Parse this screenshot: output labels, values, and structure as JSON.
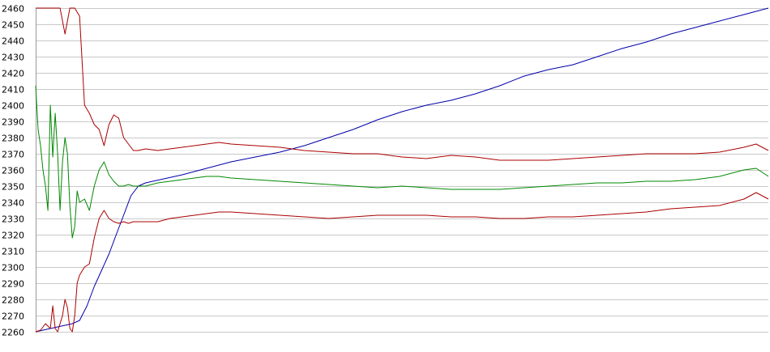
{
  "chart_data": {
    "type": "line",
    "title": "",
    "xlabel": "",
    "ylabel": "",
    "ylim": [
      2260,
      2460
    ],
    "yticks": [
      2260,
      2270,
      2280,
      2290,
      2300,
      2310,
      2320,
      2330,
      2340,
      2350,
      2360,
      2370,
      2380,
      2390,
      2400,
      2410,
      2420,
      2430,
      2440,
      2450,
      2460
    ],
    "xlim": [
      0,
      300
    ],
    "grid": true,
    "legend": "none",
    "series": [
      {
        "color": "#0000aa",
        "x": [
          0,
          3,
          6,
          9,
          12,
          15,
          18,
          21,
          24,
          27,
          30,
          33,
          36,
          39,
          42,
          45,
          48,
          51,
          54,
          57,
          60,
          65,
          70,
          75,
          80,
          90,
          100,
          110,
          120,
          130,
          140,
          150,
          160,
          170,
          180,
          190,
          200,
          210,
          220,
          230,
          240,
          250,
          260,
          270,
          280,
          290,
          300
        ],
        "values": [
          2260,
          2261,
          2262,
          2263,
          2264,
          2265,
          2267,
          2276,
          2288,
          2298,
          2308,
          2320,
          2332,
          2344,
          2350,
          2352,
          2353,
          2354,
          2355,
          2356,
          2357,
          2359,
          2361,
          2363,
          2365,
          2368,
          2371,
          2375,
          2380,
          2385,
          2391,
          2396,
          2400,
          2403,
          2407,
          2412,
          2418,
          2422,
          2425,
          2430,
          2435,
          2439,
          2444,
          2448,
          2452,
          2456,
          2460
        ]
      },
      {
        "color": "#aa0000",
        "x": [
          0,
          2,
          4,
          6,
          8,
          10,
          12,
          14,
          16,
          18,
          20,
          22,
          24,
          26,
          28,
          30,
          32,
          34,
          36,
          38,
          40,
          42,
          45,
          50,
          55,
          60,
          65,
          70,
          75,
          80,
          90,
          100,
          110,
          120,
          130,
          140,
          150,
          160,
          170,
          180,
          190,
          200,
          210,
          220,
          230,
          240,
          250,
          260,
          270,
          280,
          290,
          295,
          300
        ],
        "values": [
          2460,
          2460,
          2460,
          2460,
          2460,
          2460,
          2444,
          2460,
          2460,
          2455,
          2400,
          2395,
          2388,
          2385,
          2375,
          2388,
          2394,
          2392,
          2380,
          2376,
          2372,
          2372,
          2373,
          2372,
          2373,
          2374,
          2375,
          2376,
          2377,
          2376,
          2375,
          2374,
          2372,
          2371,
          2370,
          2370,
          2368,
          2367,
          2369,
          2368,
          2366,
          2366,
          2366,
          2367,
          2368,
          2369,
          2370,
          2370,
          2370,
          2371,
          2374,
          2376,
          2372
        ]
      },
      {
        "color": "#008800",
        "x": [
          0,
          1,
          2,
          3,
          4,
          5,
          6,
          7,
          8,
          9,
          10,
          11,
          12,
          13,
          14,
          15,
          16,
          17,
          18,
          20,
          22,
          24,
          26,
          28,
          30,
          32,
          34,
          36,
          38,
          40,
          42,
          45,
          50,
          55,
          60,
          65,
          70,
          75,
          80,
          90,
          100,
          110,
          120,
          130,
          140,
          150,
          160,
          170,
          180,
          190,
          200,
          210,
          220,
          230,
          240,
          250,
          260,
          270,
          280,
          290,
          295,
          300
        ],
        "values": [
          2412,
          2385,
          2375,
          2360,
          2350,
          2335,
          2400,
          2368,
          2395,
          2370,
          2335,
          2365,
          2380,
          2370,
          2338,
          2318,
          2325,
          2347,
          2340,
          2342,
          2335,
          2350,
          2360,
          2365,
          2357,
          2353,
          2350,
          2350,
          2351,
          2350,
          2350,
          2350,
          2352,
          2353,
          2354,
          2355,
          2356,
          2356,
          2355,
          2354,
          2353,
          2352,
          2351,
          2350,
          2349,
          2350,
          2349,
          2348,
          2348,
          2348,
          2349,
          2350,
          2351,
          2352,
          2352,
          2353,
          2353,
          2354,
          2356,
          2360,
          2361,
          2356
        ]
      },
      {
        "color": "#aa0000",
        "x": [
          0,
          2,
          4,
          6,
          7,
          8,
          9,
          10,
          11,
          12,
          13,
          14,
          15,
          16,
          17,
          18,
          20,
          22,
          24,
          26,
          28,
          30,
          32,
          34,
          36,
          38,
          40,
          42,
          45,
          50,
          55,
          60,
          65,
          70,
          75,
          80,
          90,
          100,
          110,
          120,
          130,
          140,
          150,
          160,
          170,
          180,
          190,
          200,
          210,
          220,
          230,
          240,
          250,
          260,
          270,
          280,
          290,
          295,
          300
        ],
        "values": [
          2260,
          2261,
          2265,
          2262,
          2276,
          2262,
          2260,
          2265,
          2270,
          2280,
          2275,
          2262,
          2260,
          2270,
          2290,
          2295,
          2300,
          2302,
          2318,
          2330,
          2335,
          2330,
          2328,
          2327,
          2328,
          2327,
          2328,
          2328,
          2328,
          2328,
          2330,
          2331,
          2332,
          2333,
          2334,
          2334,
          2333,
          2332,
          2331,
          2330,
          2331,
          2332,
          2332,
          2332,
          2331,
          2331,
          2330,
          2330,
          2331,
          2331,
          2332,
          2333,
          2334,
          2336,
          2337,
          2338,
          2342,
          2346,
          2342
        ]
      }
    ]
  }
}
